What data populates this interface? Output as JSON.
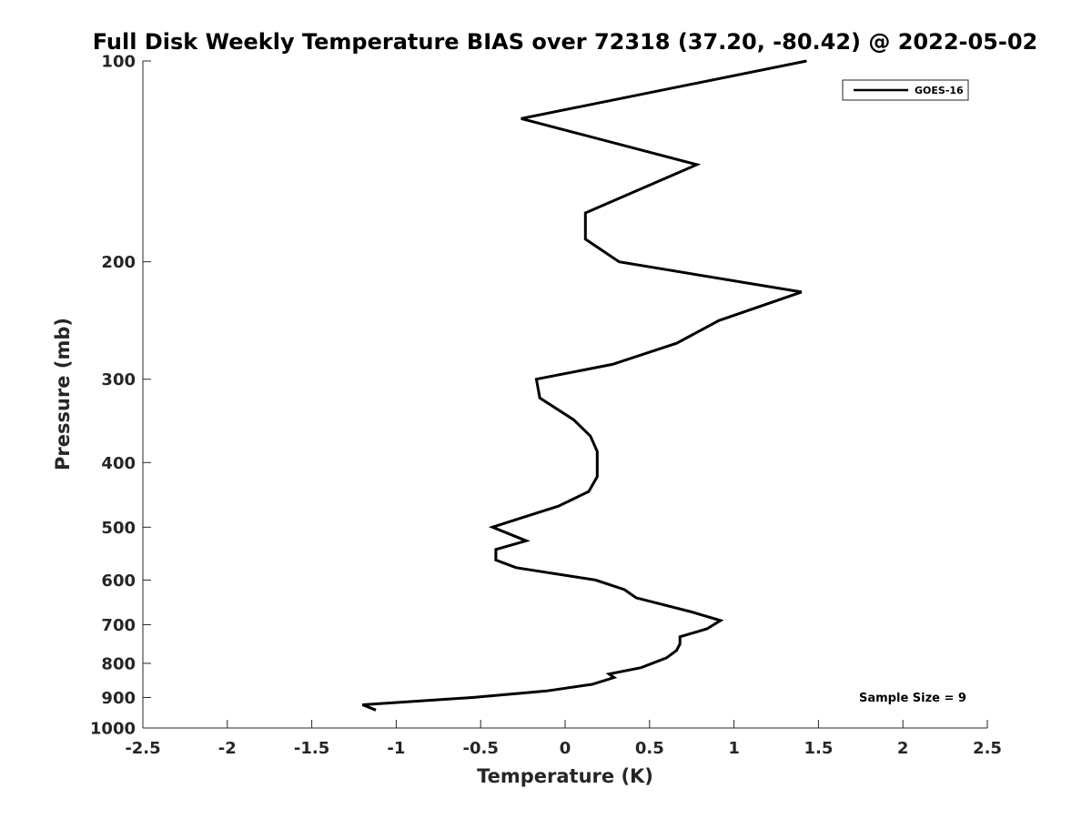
{
  "chart_data": {
    "type": "line",
    "title": "Full Disk Weekly Temperature BIAS over 72318 (37.20, -80.42) @ 2022-05-02",
    "xlabel": "Temperature (K)",
    "ylabel": "Pressure (mb)",
    "xlim": [
      -2.5,
      2.5
    ],
    "ylim": [
      1000,
      100
    ],
    "yscale": "log",
    "y_reversed": true,
    "grid": false,
    "x_ticks": [
      -2.5,
      -2,
      -1.5,
      -1,
      -0.5,
      0,
      0.5,
      1,
      1.5,
      2,
      2.5
    ],
    "x_tick_labels": [
      "-2.5",
      "-2",
      "-1.5",
      "-1",
      "-0.5",
      "0",
      "0.5",
      "1",
      "1.5",
      "2",
      "2.5"
    ],
    "y_ticks": [
      100,
      200,
      300,
      400,
      500,
      600,
      700,
      800,
      900,
      1000
    ],
    "y_tick_labels": [
      "100",
      "200",
      "300",
      "400",
      "500",
      "600",
      "700",
      "800",
      "900",
      "1000"
    ],
    "legend": {
      "position": "top-right",
      "entries": [
        "GOES-16"
      ]
    },
    "annotation": "Sample Size = 9",
    "series": [
      {
        "name": "GOES-16",
        "color": "#000000",
        "points": [
          {
            "x": 1.43,
            "p": 100
          },
          {
            "x": -0.26,
            "p": 122
          },
          {
            "x": 0.78,
            "p": 143
          },
          {
            "x": 0.12,
            "p": 169
          },
          {
            "x": 0.12,
            "p": 185
          },
          {
            "x": 0.32,
            "p": 200
          },
          {
            "x": 1.4,
            "p": 222
          },
          {
            "x": 0.91,
            "p": 245
          },
          {
            "x": 0.66,
            "p": 265
          },
          {
            "x": 0.28,
            "p": 285
          },
          {
            "x": -0.17,
            "p": 300
          },
          {
            "x": -0.15,
            "p": 320
          },
          {
            "x": 0.05,
            "p": 345
          },
          {
            "x": 0.15,
            "p": 365
          },
          {
            "x": 0.19,
            "p": 385
          },
          {
            "x": 0.19,
            "p": 420
          },
          {
            "x": 0.14,
            "p": 442
          },
          {
            "x": -0.04,
            "p": 465
          },
          {
            "x": -0.3,
            "p": 488
          },
          {
            "x": -0.43,
            "p": 500
          },
          {
            "x": -0.23,
            "p": 524
          },
          {
            "x": -0.41,
            "p": 540
          },
          {
            "x": -0.41,
            "p": 560
          },
          {
            "x": -0.29,
            "p": 575
          },
          {
            "x": 0.18,
            "p": 600
          },
          {
            "x": 0.35,
            "p": 620
          },
          {
            "x": 0.42,
            "p": 638
          },
          {
            "x": 0.75,
            "p": 670
          },
          {
            "x": 0.92,
            "p": 690
          },
          {
            "x": 0.84,
            "p": 710
          },
          {
            "x": 0.68,
            "p": 730
          },
          {
            "x": 0.68,
            "p": 748
          },
          {
            "x": 0.66,
            "p": 765
          },
          {
            "x": 0.6,
            "p": 785
          },
          {
            "x": 0.45,
            "p": 812
          },
          {
            "x": 0.26,
            "p": 830
          },
          {
            "x": 0.29,
            "p": 840
          },
          {
            "x": 0.16,
            "p": 860
          },
          {
            "x": -0.11,
            "p": 880
          },
          {
            "x": -0.55,
            "p": 900
          },
          {
            "x": -1.2,
            "p": 923
          },
          {
            "x": -1.12,
            "p": 940
          }
        ]
      }
    ]
  }
}
